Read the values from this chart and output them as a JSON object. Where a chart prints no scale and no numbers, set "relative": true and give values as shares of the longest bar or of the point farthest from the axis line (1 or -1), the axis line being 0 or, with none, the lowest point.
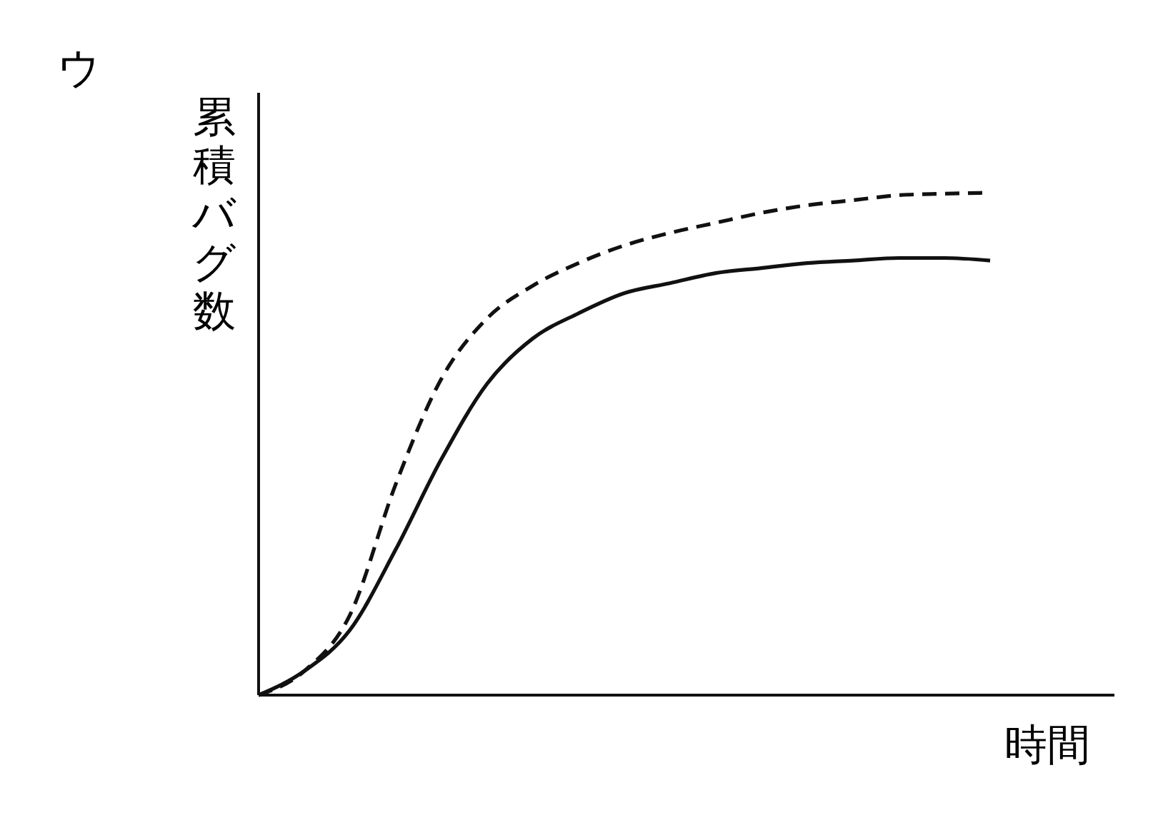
{
  "chart_data": {
    "type": "line",
    "title": "ウ",
    "xlabel": "時間",
    "ylabel": "累積バグ数",
    "relative": true,
    "categories": [
      null,
      null,
      null,
      null,
      null,
      null,
      null,
      null,
      null,
      null,
      null,
      null,
      null,
      null,
      null,
      null,
      null,
      null,
      null
    ],
    "series": [
      {
        "color": "#111111",
        "line_style": "dashed",
        "values": [
          0,
          0.048,
          0.16,
          0.42,
          0.63,
          0.75,
          0.815,
          0.86,
          0.895,
          0.92,
          0.94,
          0.96,
          0.975,
          0.985,
          0.995,
          0.998,
          1,
          null,
          null
        ]
      },
      {
        "color": "#111111",
        "line_style": "solid",
        "values": [
          0,
          0.048,
          0.13,
          0.29,
          0.47,
          0.62,
          0.71,
          0.76,
          0.8,
          0.82,
          0.84,
          0.85,
          0.86,
          0.865,
          0.87,
          0.87,
          0.865,
          null,
          null
        ]
      }
    ]
  }
}
